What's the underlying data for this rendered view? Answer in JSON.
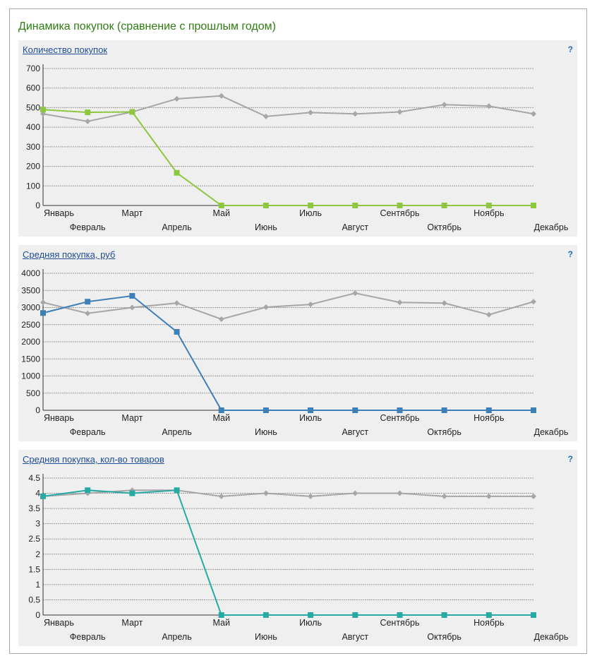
{
  "widget": {
    "title": "Динамика покупок (сравнение с прошлым годом)",
    "help_symbol": "?"
  },
  "colors": {
    "prev_year": "#a6a6a6",
    "chart1": "#8dc63f",
    "chart2": "#3f7fb8",
    "chart3": "#27aaa4",
    "grid": "#9a9a9a",
    "axis": "#333333"
  },
  "chart_data": [
    {
      "type": "line",
      "title": "Количество покупок",
      "categories": [
        "Январь",
        "Февраль",
        "Март",
        "Апрель",
        "Май",
        "Июнь",
        "Июль",
        "Август",
        "Сентябрь",
        "Октябрь",
        "Ноябрь",
        "Декабрь"
      ],
      "yticks": [
        "0",
        "100",
        "200",
        "300",
        "400",
        "500",
        "600",
        "700"
      ],
      "ylim": [
        0,
        700
      ],
      "grid": true,
      "series": [
        {
          "values": [
            468,
            430,
            478,
            545,
            560,
            455,
            475,
            468,
            478,
            515,
            508,
            468
          ],
          "marker": "diamond"
        },
        {
          "values": [
            490,
            476,
            478,
            167,
            0,
            0,
            0,
            0,
            0,
            0,
            0,
            0
          ],
          "marker": "square"
        }
      ]
    },
    {
      "type": "line",
      "title": "Средняя покупка, руб",
      "categories": [
        "Январь",
        "Февраль",
        "Март",
        "Апрель",
        "Май",
        "Июнь",
        "Июль",
        "Август",
        "Сентябрь",
        "Октябрь",
        "Ноябрь",
        "Декабрь"
      ],
      "yticks": [
        "0",
        "500",
        "1000",
        "1500",
        "2000",
        "2500",
        "3000",
        "3500",
        "4000"
      ],
      "ylim": [
        0,
        4000
      ],
      "grid": true,
      "series": [
        {
          "values": [
            3150,
            2830,
            3000,
            3130,
            2660,
            3010,
            3090,
            3420,
            3150,
            3130,
            2790,
            3170
          ],
          "marker": "diamond"
        },
        {
          "values": [
            2840,
            3170,
            3340,
            2290,
            0,
            0,
            0,
            0,
            0,
            0,
            0,
            0
          ],
          "marker": "square"
        }
      ]
    },
    {
      "type": "line",
      "title": "Средняя покупка, кол-во товаров",
      "categories": [
        "Январь",
        "Февраль",
        "Март",
        "Апрель",
        "Май",
        "Июнь",
        "Июль",
        "Август",
        "Сентябрь",
        "Октябрь",
        "Ноябрь",
        "Декабрь"
      ],
      "yticks": [
        "0",
        "0.5",
        "1",
        "1.5",
        "2",
        "2.5",
        "3",
        "3.5",
        "4",
        "4.5"
      ],
      "ylim": [
        0,
        4.5
      ],
      "grid": true,
      "series": [
        {
          "values": [
            3.9,
            4.0,
            4.1,
            4.1,
            3.9,
            4.0,
            3.9,
            4.0,
            4.0,
            3.9,
            3.9,
            3.9
          ],
          "marker": "diamond"
        },
        {
          "values": [
            3.9,
            4.1,
            4.0,
            4.1,
            0,
            0,
            0,
            0,
            0,
            0,
            0,
            0
          ],
          "marker": "square"
        }
      ]
    }
  ]
}
